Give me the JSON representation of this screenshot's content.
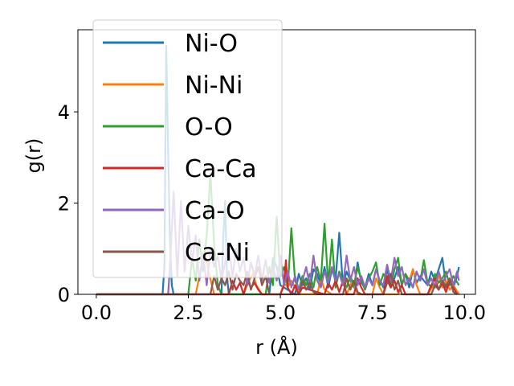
{
  "chart_data": {
    "type": "line",
    "title": "",
    "xlabel": "r (Å)",
    "ylabel": "g(r)",
    "xlim": [
      -0.5,
      10.3
    ],
    "ylim": [
      0,
      5.8
    ],
    "x_ticks": [
      "0.0",
      "2.5",
      "5.0",
      "7.5",
      "10.0"
    ],
    "y_ticks": [
      "0",
      "2",
      "4"
    ],
    "grid": false,
    "legend_position": "upper-left",
    "series": [
      {
        "name": "Ni-O",
        "color": "#1f77b4",
        "x": [
          0.0,
          1.7,
          1.8,
          1.85,
          1.9,
          1.95,
          2.0,
          2.05,
          2.1,
          2.2,
          3.0,
          3.4,
          3.45,
          3.5,
          3.55,
          3.6,
          4.7,
          4.8,
          4.9,
          5.0,
          5.4,
          5.5,
          5.6,
          5.7,
          5.8,
          5.9,
          6.0,
          6.1,
          6.2,
          6.3,
          6.4,
          6.5,
          6.6,
          6.7,
          6.8,
          6.9,
          7.0,
          7.1,
          7.2,
          7.3,
          7.4,
          7.5,
          7.6,
          7.7,
          7.8,
          7.9,
          8.0,
          8.1,
          8.2,
          8.3,
          8.4,
          8.5,
          8.6,
          8.7,
          8.8,
          8.9,
          9.0,
          9.1,
          9.2,
          9.3,
          9.4,
          9.5,
          9.6,
          9.7,
          9.8,
          9.85
        ],
        "y": [
          0,
          0,
          0,
          0.6,
          5.45,
          3.2,
          1.2,
          0.2,
          0,
          0,
          0,
          0,
          1.25,
          2.05,
          0.4,
          0,
          0,
          0.8,
          0.6,
          0.2,
          0,
          0.45,
          0.2,
          0.35,
          0.1,
          0.55,
          0.45,
          0.2,
          0.6,
          0.15,
          0.55,
          0.3,
          1.35,
          0.2,
          0.5,
          0.3,
          0.15,
          0.7,
          0.25,
          0.15,
          0.45,
          0.2,
          0.55,
          0.3,
          0.15,
          0.55,
          0.2,
          0.35,
          0.6,
          0.2,
          0.45,
          0.15,
          0.55,
          0.25,
          0.4,
          0.3,
          0.2,
          0.5,
          0.3,
          0.55,
          0.8,
          0.2,
          0.3,
          0.15,
          0.4,
          0.6
        ]
      },
      {
        "name": "Ni-Ni",
        "color": "#ff7f0e",
        "x": [
          0.0,
          2.7,
          2.85,
          2.95,
          3.05,
          3.2,
          4.0,
          4.15,
          4.25,
          4.35,
          4.5,
          5.0,
          5.1,
          5.2,
          5.3,
          5.5,
          6.0,
          6.1,
          6.2,
          6.4,
          6.8,
          6.95,
          7.1,
          7.5,
          7.6,
          7.7,
          7.8,
          8.2,
          8.3,
          8.4,
          8.5,
          8.6,
          8.7,
          8.8,
          9.0,
          9.2,
          9.3,
          9.4,
          9.5,
          9.6,
          9.7,
          9.85
        ],
        "y": [
          0,
          0,
          0.6,
          1.0,
          0.5,
          0,
          0,
          0.3,
          0.45,
          0.2,
          0,
          0,
          0.25,
          0.15,
          0.3,
          0,
          0,
          0.35,
          0.1,
          0,
          0,
          0.3,
          0,
          0,
          0.35,
          0.15,
          0,
          0,
          0.2,
          0.45,
          0.3,
          0.55,
          0.2,
          0,
          0,
          0.25,
          0.4,
          0.15,
          0.3,
          0.1,
          0.2,
          0
        ]
      },
      {
        "name": "O-O",
        "color": "#2ca02c",
        "x": [
          0.0,
          2.5,
          2.6,
          2.7,
          2.8,
          2.9,
          3.0,
          3.1,
          3.2,
          3.3,
          3.4,
          4.6,
          4.7,
          4.8,
          4.9,
          5.0,
          5.1,
          5.2,
          5.3,
          5.4,
          5.5,
          5.6,
          5.7,
          5.8,
          5.9,
          6.0,
          6.1,
          6.2,
          6.3,
          6.4,
          6.5,
          6.6,
          6.7,
          6.8,
          6.9,
          7.0,
          7.1,
          7.2,
          7.3,
          7.4,
          7.5,
          7.6,
          7.7,
          7.8,
          7.9,
          8.0,
          8.1,
          8.2,
          8.3,
          8.4,
          8.5,
          8.6,
          8.7,
          8.8,
          8.9,
          9.0,
          9.1,
          9.2,
          9.3,
          9.4,
          9.5,
          9.6,
          9.7,
          9.85
        ],
        "y": [
          0,
          0,
          0.8,
          0.3,
          1.2,
          0.5,
          1.3,
          2.65,
          1.1,
          0.2,
          0,
          0,
          0.6,
          0.2,
          1.7,
          0.4,
          0.6,
          0.15,
          1.45,
          0.3,
          0.1,
          0.4,
          0.2,
          0.45,
          0.15,
          0.6,
          0.3,
          1.55,
          0.2,
          1.2,
          0.15,
          0.5,
          0.3,
          0.15,
          0.4,
          0.2,
          0.6,
          0.3,
          0.1,
          0.35,
          0.5,
          0.7,
          0.2,
          0.45,
          0.3,
          0.15,
          0.55,
          0.8,
          0.2,
          0.45,
          0.3,
          0.15,
          0.5,
          0.3,
          0.75,
          0.25,
          0.15,
          0.45,
          0.25,
          0.35,
          0.5,
          0.2,
          0.4,
          0.2
        ]
      },
      {
        "name": "Ca-Ca",
        "color": "#d62728",
        "x": [
          0.0,
          3.6,
          3.7,
          3.8,
          3.9,
          4.0,
          4.1,
          4.2,
          4.3,
          4.4,
          4.5,
          5.0,
          5.1,
          5.15,
          5.2,
          5.3,
          5.4,
          5.5,
          5.6,
          6.2,
          6.3,
          6.4,
          6.5,
          6.6,
          6.7,
          6.8,
          7.0,
          7.1,
          7.2,
          7.3,
          7.8,
          7.9,
          8.0,
          8.1,
          8.2,
          8.3,
          8.4,
          9.0,
          9.1,
          9.2,
          9.3,
          9.4,
          9.5,
          9.6,
          9.7,
          9.8
        ],
        "y": [
          0,
          0,
          0.3,
          0.1,
          0.25,
          0,
          0.3,
          0.15,
          0.25,
          0.1,
          0,
          0,
          0.2,
          0.75,
          0.15,
          0,
          0.2,
          0,
          0.15,
          0,
          0.25,
          0.1,
          0.3,
          0.05,
          0.3,
          0,
          0,
          0.35,
          0.15,
          0,
          0,
          0.4,
          0.15,
          0.3,
          0.05,
          0.2,
          0,
          0,
          0.2,
          0.35,
          0.1,
          0.25,
          0.05,
          0.3,
          0.15,
          0
        ]
      },
      {
        "name": "Ca-O",
        "color": "#9467bd",
        "x": [
          0.0,
          1.95,
          2.0,
          2.1,
          2.2,
          2.3,
          2.4,
          2.5,
          2.6,
          2.7,
          2.8,
          2.9,
          3.0,
          3.1,
          3.2,
          3.3,
          3.4,
          3.5,
          3.6,
          3.7,
          3.8,
          3.9,
          4.0,
          4.1,
          4.2,
          4.3,
          4.4,
          4.5,
          4.6,
          4.7,
          4.8,
          4.9,
          5.0,
          5.1,
          5.2,
          5.3,
          5.4,
          5.5,
          5.6,
          5.7,
          5.8,
          5.9,
          6.0,
          6.1,
          6.2,
          6.3,
          6.4,
          6.5,
          6.6,
          6.7,
          6.8,
          6.9,
          7.0,
          7.1,
          7.2,
          7.3,
          7.4,
          7.5,
          7.6,
          7.7,
          7.8,
          7.9,
          8.0,
          8.1,
          8.2,
          8.3,
          8.4,
          8.5,
          8.6,
          8.7,
          8.8,
          8.9,
          9.0,
          9.1,
          9.2,
          9.3,
          9.4,
          9.5,
          9.6,
          9.7,
          9.8,
          9.85
        ],
        "y": [
          0,
          0,
          0.6,
          2.25,
          0.4,
          2.05,
          0.5,
          1.5,
          0.7,
          1.3,
          0.3,
          0.9,
          0.2,
          1.0,
          0.6,
          0.85,
          0.3,
          0.7,
          1.05,
          0.4,
          1.0,
          0.5,
          0.8,
          0.2,
          0.7,
          0.4,
          0.85,
          0.3,
          0.75,
          0.25,
          0.6,
          0.3,
          0.85,
          0.2,
          0.5,
          0.15,
          0.4,
          0.1,
          0.3,
          0.6,
          0.2,
          0.85,
          0.3,
          0.15,
          0.5,
          0.25,
          0.6,
          0.3,
          0.45,
          0.2,
          0.85,
          0.3,
          0.6,
          0.2,
          0.4,
          0.15,
          0.35,
          0.2,
          0.55,
          0.3,
          0.2,
          0.65,
          0.3,
          0.8,
          0.4,
          0.6,
          0.2,
          0.35,
          0.15,
          0.5,
          0.3,
          0.55,
          0.2,
          0.35,
          0.15,
          0.5,
          0.25,
          0.4,
          0.55,
          0.2,
          0.5,
          0.3
        ]
      },
      {
        "name": "Ca-Ni",
        "color": "#8c564b",
        "x": [
          0.0,
          3.1,
          3.2,
          3.3,
          3.4,
          3.5,
          3.6,
          3.7,
          3.8,
          3.9,
          4.0,
          4.1,
          4.2,
          4.3,
          4.4,
          4.5,
          4.6,
          4.7,
          5.5,
          5.6,
          5.7,
          5.8,
          5.9,
          6.0,
          6.7,
          6.8,
          6.9,
          7.0,
          7.1,
          7.2,
          7.8,
          7.9,
          8.0,
          8.1,
          8.2,
          8.3,
          9.1,
          9.2,
          9.3,
          9.4,
          9.5,
          9.6,
          9.7,
          9.8
        ],
        "y": [
          0,
          0,
          0.4,
          0.1,
          0.35,
          0.2,
          0.5,
          0.1,
          0.45,
          0.3,
          0.2,
          0.5,
          0.1,
          0.35,
          0.6,
          0.2,
          0.4,
          0,
          0,
          0.3,
          0.1,
          0.25,
          0.05,
          0,
          0,
          0.35,
          0.1,
          0.3,
          0.05,
          0,
          0,
          0.25,
          0.45,
          0.1,
          0.3,
          0,
          0,
          0.2,
          0.1,
          0.3,
          0.15,
          0.35,
          0.05,
          0
        ]
      }
    ]
  }
}
